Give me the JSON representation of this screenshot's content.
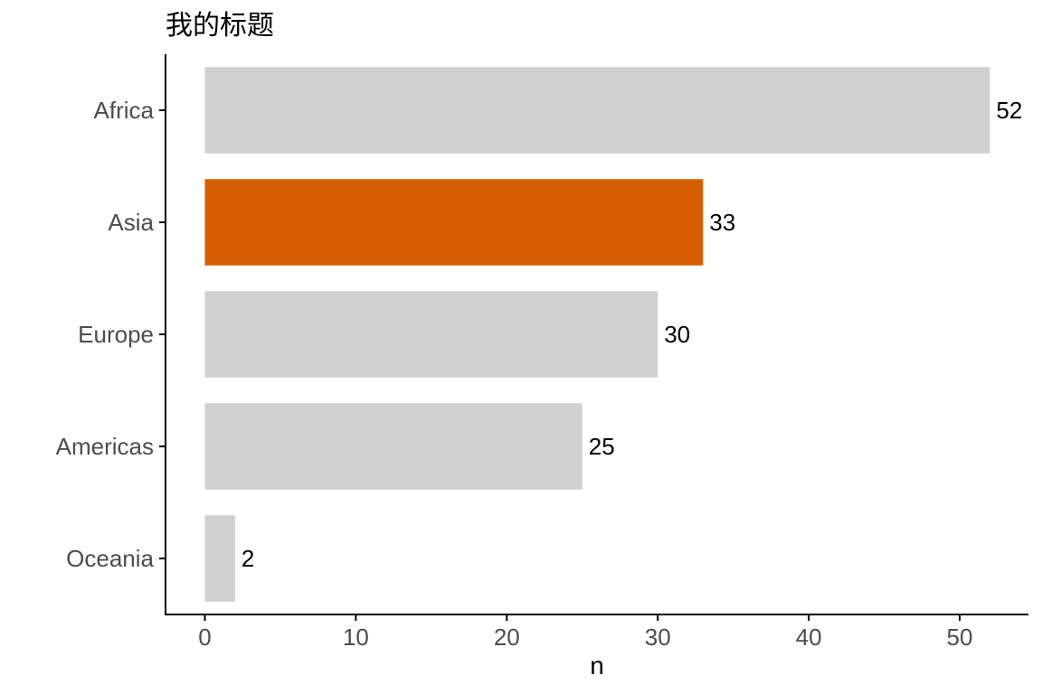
{
  "chart_data": {
    "type": "bar",
    "orientation": "horizontal",
    "title": "我的标题",
    "xlabel": "n",
    "ylabel": "",
    "categories": [
      "Africa",
      "Asia",
      "Europe",
      "Americas",
      "Oceania"
    ],
    "values": [
      52,
      33,
      30,
      25,
      2
    ],
    "data_labels": [
      "52",
      "33",
      "30",
      "25",
      "2"
    ],
    "highlight": "Asia",
    "xlim": [
      0,
      54.6
    ],
    "xticks": [
      0,
      10,
      20,
      30,
      40,
      50
    ],
    "xtick_labels": [
      "0",
      "10",
      "20",
      "30",
      "40",
      "50"
    ],
    "grid": false,
    "legend": "none",
    "colors": {
      "bar": "#d0d0d0",
      "highlight": "#d55e00",
      "axis": "#000000",
      "tick_text": "#4d4d4d",
      "label_text": "#000000"
    }
  }
}
